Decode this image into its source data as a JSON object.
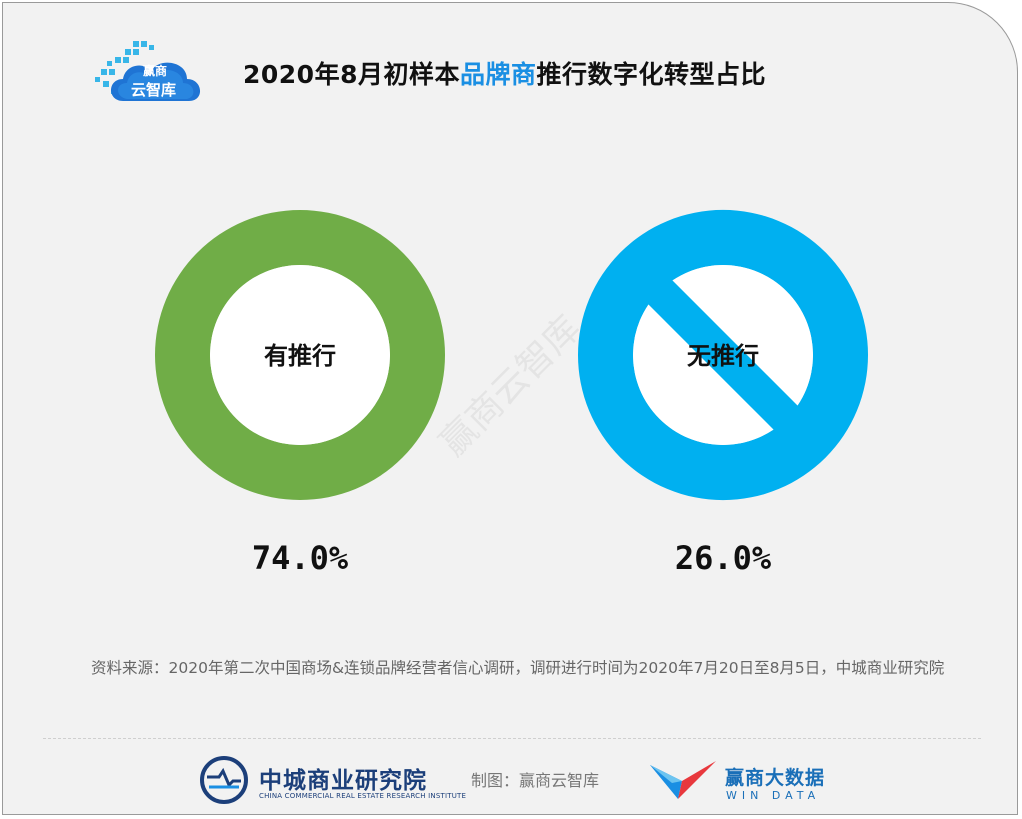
{
  "header": {
    "logo_text_1": "赢商",
    "logo_text_2": "云智库",
    "title_part1": "2020年8月初样本",
    "title_highlight": "品牌商",
    "title_part2": "推行数字化转型占比",
    "highlight_color": "#1a8fe3"
  },
  "chart_data": {
    "type": "pie",
    "slices": [
      {
        "label": "有推行",
        "value": 74.0,
        "display": "74.0%",
        "color": "#70ad47",
        "shape": "ring"
      },
      {
        "label": "无推行",
        "value": 26.0,
        "display": "26.0%",
        "color": "#00b0f0",
        "shape": "no-symbol"
      }
    ]
  },
  "watermark": "赢商云智库",
  "source": {
    "text": "资料来源：2020年第二次中国商场&连锁品牌经营者信心调研，调研进行时间为2020年7月20日至8月5日，中城商业研究院"
  },
  "footer": {
    "org_cn": "中城商业研究院",
    "org_en": "CHINA COMMERCIAL REAL ESTATE RESEARCH INSTITUTE",
    "credit": "制图：赢商云智库",
    "brand_cn": "赢商大数据",
    "brand_en": "WIN DATA"
  }
}
